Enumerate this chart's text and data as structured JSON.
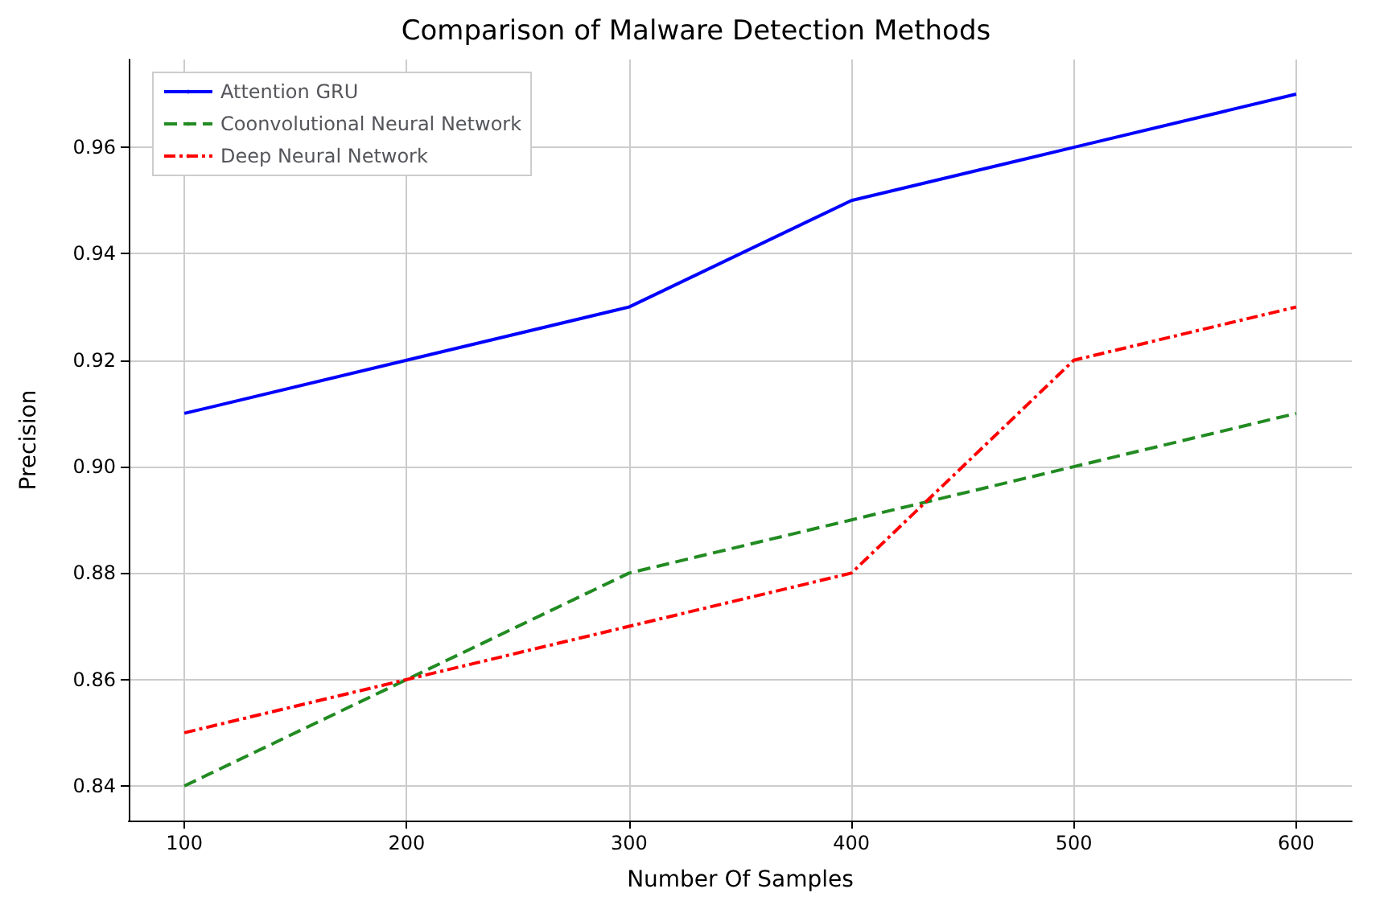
{
  "chart_data": {
    "type": "line",
    "title": "Comparison of Malware Detection Methods",
    "xlabel": "Number Of Samples",
    "ylabel": "Precision",
    "x": [
      100,
      200,
      300,
      400,
      500,
      600
    ],
    "series": [
      {
        "name": "Attention GRU",
        "color": "#0000ff",
        "line_style": "solid",
        "values": [
          0.91,
          0.92,
          0.93,
          0.95,
          0.96,
          0.97
        ]
      },
      {
        "name": "Coonvolutional Neural Network",
        "color": "#228b22",
        "line_style": "dashed",
        "values": [
          0.84,
          0.86,
          0.88,
          0.89,
          0.9,
          0.91
        ]
      },
      {
        "name": "Deep Neural Network",
        "color": "#ff0000",
        "line_style": "dashdot",
        "values": [
          0.85,
          0.86,
          0.87,
          0.88,
          0.92,
          0.93
        ]
      }
    ],
    "xlim": [
      75,
      625
    ],
    "xticks": [
      100,
      200,
      300,
      400,
      500,
      600
    ],
    "ylim": [
      0.8335,
      0.9765
    ],
    "yticks": [
      0.84,
      0.86,
      0.88,
      {
        "value": 0.9,
        "label": "0.90"
      },
      0.92,
      0.94,
      0.96
    ],
    "grid": true,
    "legend": "top left",
    "marker": "none"
  }
}
